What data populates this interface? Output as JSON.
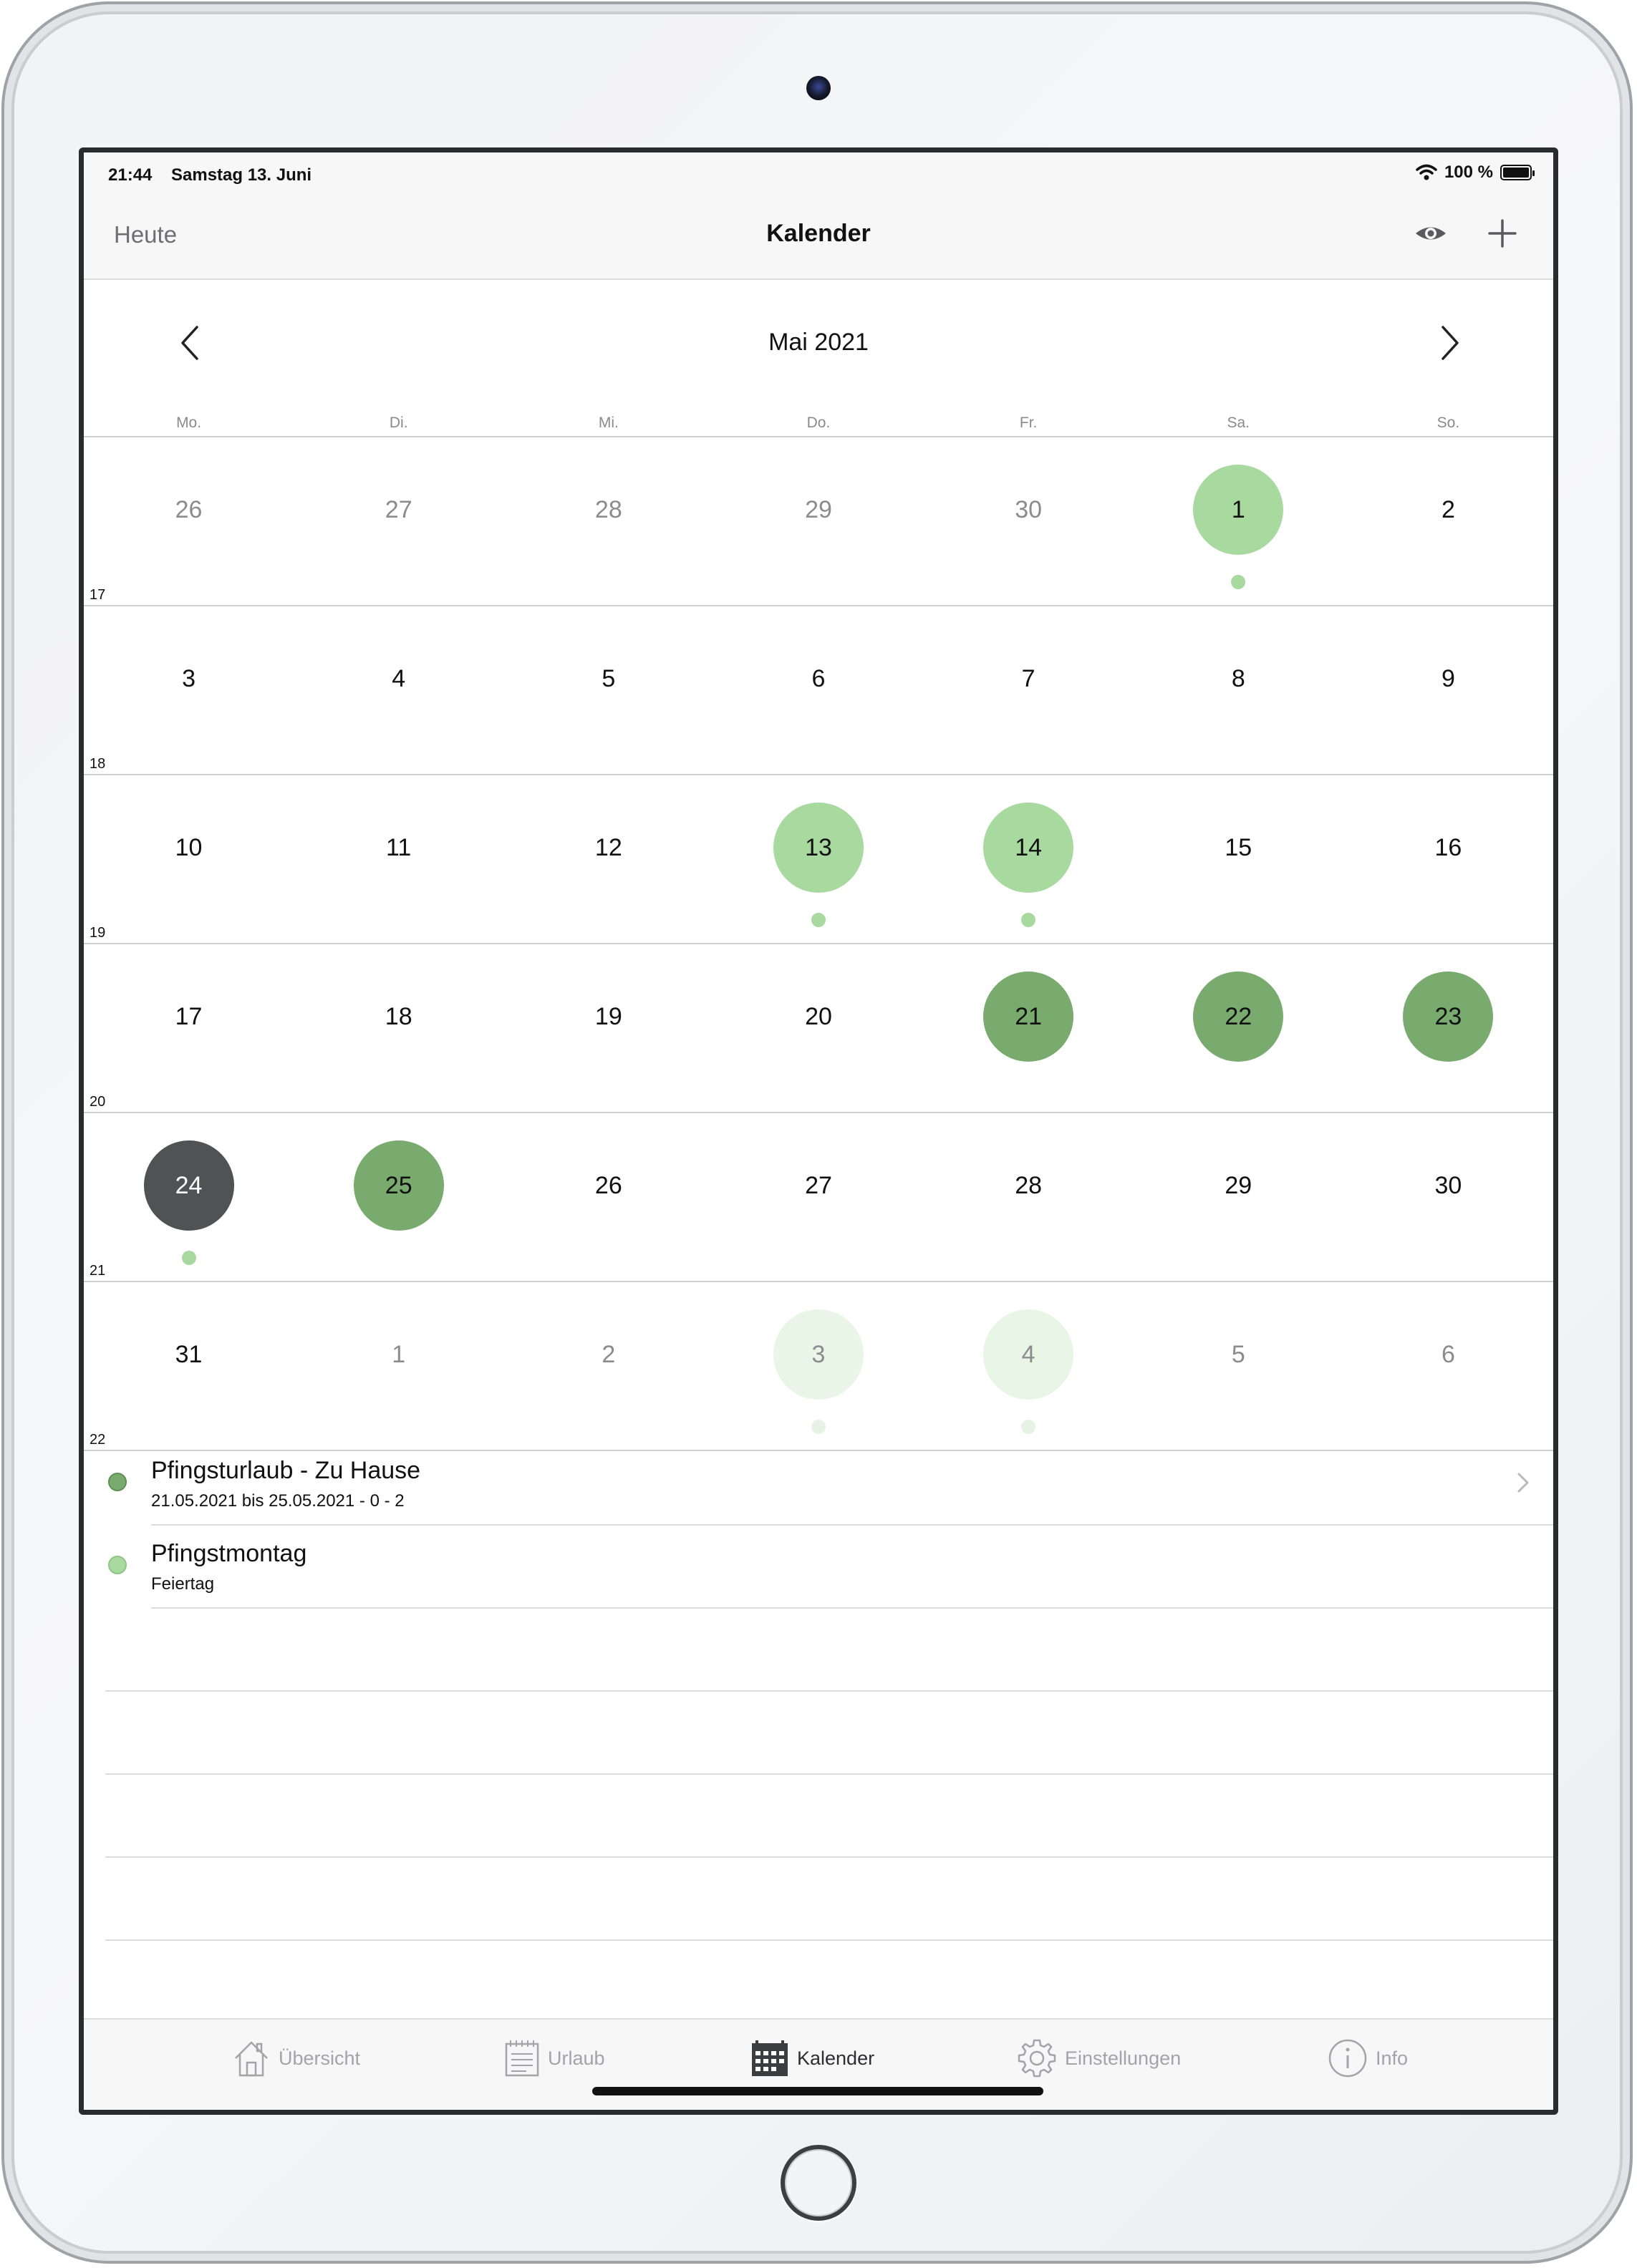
{
  "status_bar": {
    "time": "21:44",
    "date": "Samstag 13. Juni",
    "battery": "100 %"
  },
  "nav": {
    "left": "Heute",
    "title": "Kalender",
    "right_icons": [
      "eye-icon",
      "plus-icon"
    ]
  },
  "calendar": {
    "month": "Mai 2021",
    "weekdays": [
      "Mo.",
      "Di.",
      "Mi.",
      "Do.",
      "Fr.",
      "Sa.",
      "So."
    ],
    "weeks": [
      {
        "number": "17",
        "days": [
          {
            "d": "26",
            "other": true
          },
          {
            "d": "27",
            "other": true
          },
          {
            "d": "28",
            "other": true
          },
          {
            "d": "29",
            "other": true
          },
          {
            "d": "30",
            "other": true
          },
          {
            "d": "1",
            "hl": "light",
            "dot": true
          },
          {
            "d": "2"
          }
        ]
      },
      {
        "number": "18",
        "days": [
          {
            "d": "3"
          },
          {
            "d": "4"
          },
          {
            "d": "5"
          },
          {
            "d": "6"
          },
          {
            "d": "7"
          },
          {
            "d": "8"
          },
          {
            "d": "9"
          }
        ]
      },
      {
        "number": "19",
        "days": [
          {
            "d": "10"
          },
          {
            "d": "11"
          },
          {
            "d": "12"
          },
          {
            "d": "13",
            "hl": "light",
            "dot": true
          },
          {
            "d": "14",
            "hl": "light",
            "dot": true
          },
          {
            "d": "15"
          },
          {
            "d": "16"
          }
        ]
      },
      {
        "number": "20",
        "days": [
          {
            "d": "17"
          },
          {
            "d": "18"
          },
          {
            "d": "19"
          },
          {
            "d": "20"
          },
          {
            "d": "21",
            "hl": "mid"
          },
          {
            "d": "22",
            "hl": "mid"
          },
          {
            "d": "23",
            "hl": "mid"
          }
        ]
      },
      {
        "number": "21",
        "days": [
          {
            "d": "24",
            "hl": "dark",
            "dot": true
          },
          {
            "d": "25",
            "hl": "mid"
          },
          {
            "d": "26"
          },
          {
            "d": "27"
          },
          {
            "d": "28"
          },
          {
            "d": "29"
          },
          {
            "d": "30"
          }
        ]
      },
      {
        "number": "22",
        "days": [
          {
            "d": "31"
          },
          {
            "d": "1",
            "other": true
          },
          {
            "d": "2",
            "other": true
          },
          {
            "d": "3",
            "other": true,
            "hl": "faint",
            "dot": "faint"
          },
          {
            "d": "4",
            "other": true,
            "hl": "faint",
            "dot": "faint"
          },
          {
            "d": "5",
            "other": true
          },
          {
            "d": "6",
            "other": true
          }
        ]
      }
    ]
  },
  "events": [
    {
      "title": "Pfingsturlaub - Zu Hause",
      "subtitle": "21.05.2021 bis 25.05.2021 - 0 - 2",
      "color": "#7aab6e",
      "chevron": true
    },
    {
      "title": "Pfingstmontag",
      "subtitle": "Feiertag",
      "color": "#a8d99f",
      "chevron": false
    }
  ],
  "tabs": [
    {
      "label": "Übersicht",
      "icon": "house-icon",
      "active": false
    },
    {
      "label": "Urlaub",
      "icon": "notepad-icon",
      "active": false
    },
    {
      "label": "Kalender",
      "icon": "calendar-icon",
      "active": true
    },
    {
      "label": "Einstellungen",
      "icon": "gear-icon",
      "active": false
    },
    {
      "label": "Info",
      "icon": "info-icon",
      "active": false
    }
  ],
  "colors": {
    "light_green": "#a8d99f",
    "mid_green": "#7aab6e",
    "today_dark": "#515254"
  }
}
